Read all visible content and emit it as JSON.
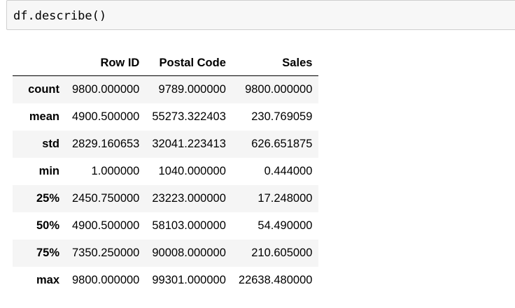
{
  "cell": {
    "code": "df.describe()"
  },
  "table": {
    "columns": [
      "Row ID",
      "Postal Code",
      "Sales"
    ],
    "rows": [
      {
        "label": "count",
        "values": [
          "9800.000000",
          "9789.000000",
          "9800.000000"
        ]
      },
      {
        "label": "mean",
        "values": [
          "4900.500000",
          "55273.322403",
          "230.769059"
        ]
      },
      {
        "label": "std",
        "values": [
          "2829.160653",
          "32041.223413",
          "626.651875"
        ]
      },
      {
        "label": "min",
        "values": [
          "1.000000",
          "1040.000000",
          "0.444000"
        ]
      },
      {
        "label": "25%",
        "values": [
          "2450.750000",
          "23223.000000",
          "17.248000"
        ]
      },
      {
        "label": "50%",
        "values": [
          "4900.500000",
          "58103.000000",
          "54.490000"
        ]
      },
      {
        "label": "75%",
        "values": [
          "7350.250000",
          "90008.000000",
          "210.605000"
        ]
      },
      {
        "label": "max",
        "values": [
          "9800.000000",
          "99301.000000",
          "22638.480000"
        ]
      }
    ]
  }
}
